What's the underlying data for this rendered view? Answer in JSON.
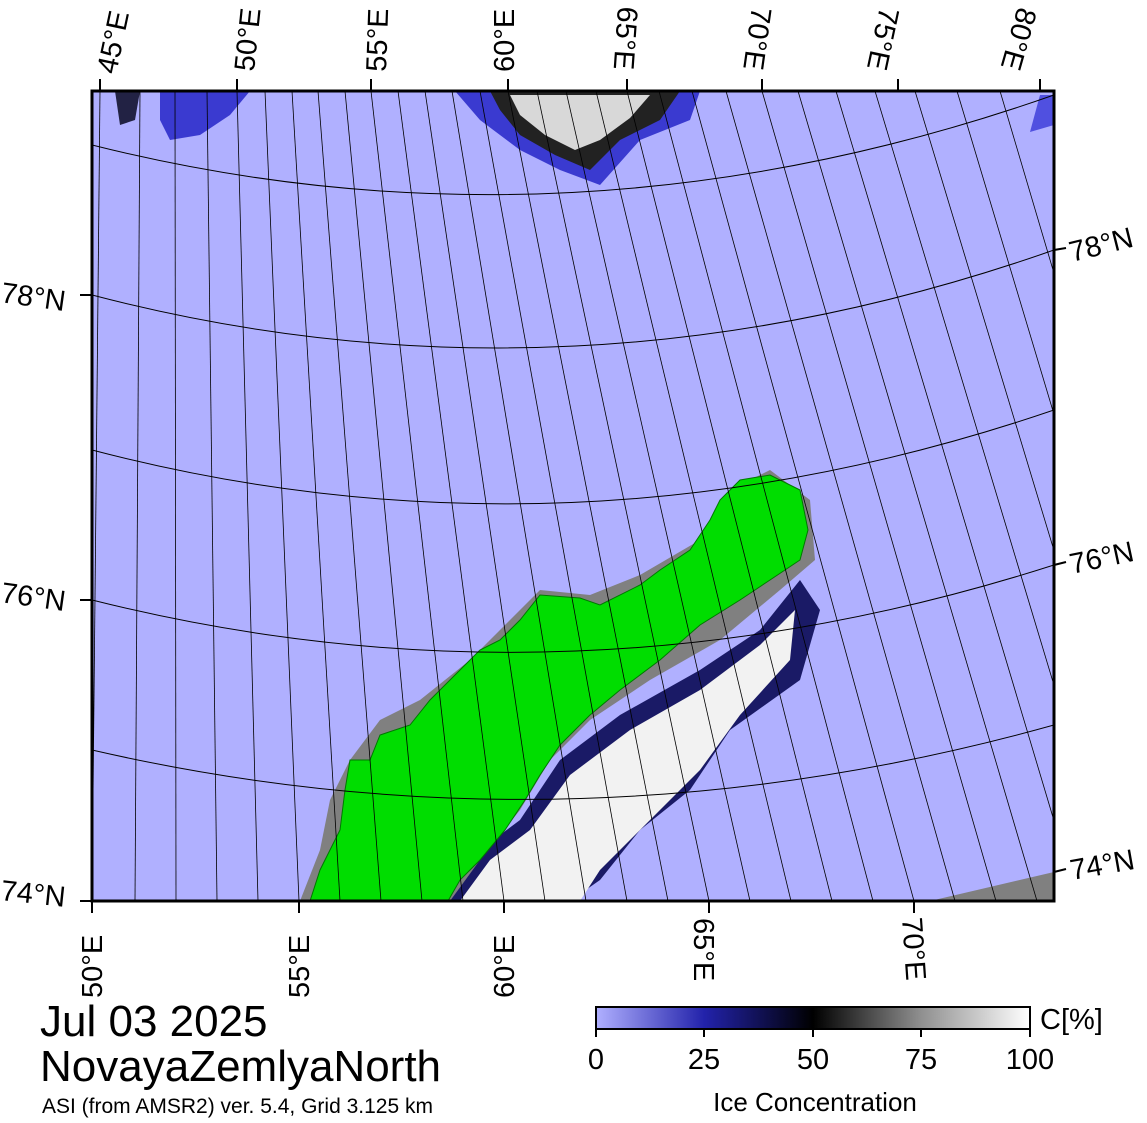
{
  "map": {
    "top_lon_labels": [
      "45°E",
      "50°E",
      "55°E",
      "60°E",
      "65°E",
      "70°E",
      "75°E",
      "80°E"
    ],
    "bottom_lon_labels": [
      "50°E",
      "55°E",
      "60°E",
      "65°E",
      "70°E"
    ],
    "left_lat_labels": [
      "78°N",
      "76°N",
      "74°N"
    ],
    "right_lat_labels": [
      "78°N",
      "76°N",
      "74°N"
    ],
    "colors": {
      "open_water": "#b0b0ff",
      "land": "#00dd00",
      "no_data": "#808080",
      "ice_low": "#6060ee",
      "ice_mid": "#000033",
      "ice_high": "#ffffff"
    }
  },
  "info": {
    "date": "Jul 03 2025",
    "region": "NovayaZemlyaNorth",
    "source": "ASI (from AMSR2) ver. 5.4,  Grid 3.125 km"
  },
  "colorbar": {
    "unit": "C[%]",
    "title": "Ice Concentration",
    "ticks": [
      "0",
      "25",
      "50",
      "75",
      "100"
    ]
  }
}
